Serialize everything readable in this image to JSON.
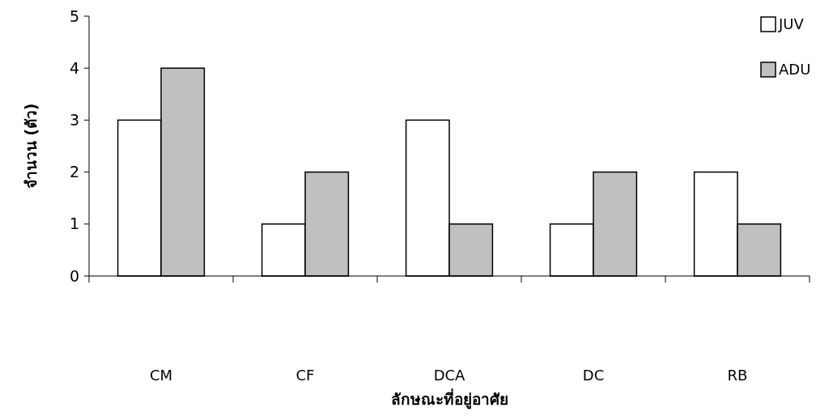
{
  "chart_data": {
    "type": "bar",
    "xlabel": "ลักษณะที่อยู่อาศัย",
    "ylabel": "จำนวน (ตัว)",
    "categories": [
      "CM",
      "CF",
      "DCA",
      "DC",
      "RB"
    ],
    "series": [
      {
        "name": "JUV",
        "color": "#ffffff",
        "values": [
          3,
          1,
          3,
          1,
          2
        ]
      },
      {
        "name": "ADU",
        "color": "#c0c0c0",
        "values": [
          4,
          2,
          1,
          2,
          1
        ]
      }
    ],
    "ylim": [
      0,
      5
    ],
    "yticks": [
      0,
      1,
      2,
      3,
      4,
      5
    ],
    "legend": "top right"
  }
}
